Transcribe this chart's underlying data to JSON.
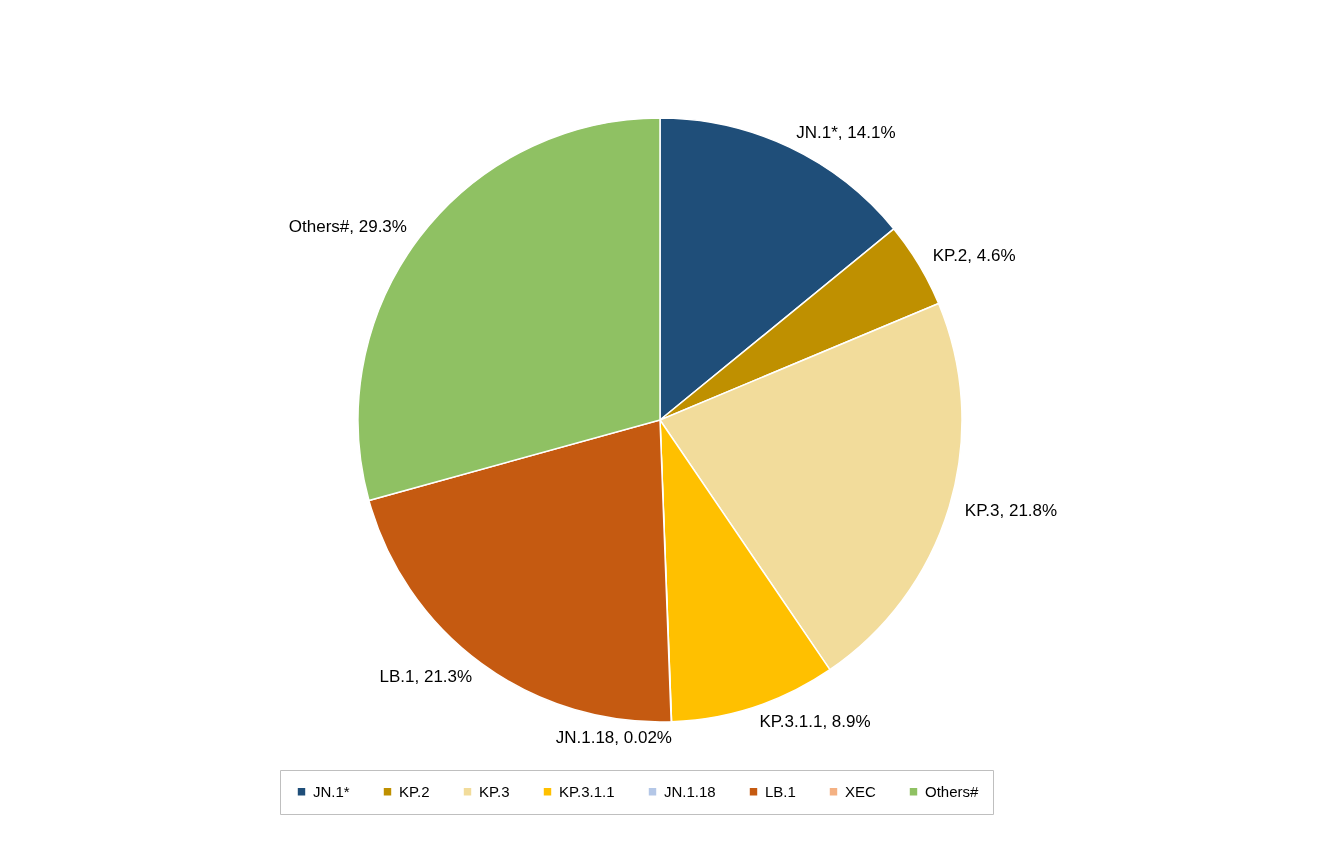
{
  "chart_data": {
    "type": "pie",
    "categories": [
      "JN.1*",
      "KP.2",
      "KP.3",
      "KP.3.1.1",
      "JN.1.18",
      "LB.1",
      "XEC",
      "Others#"
    ],
    "values": [
      14.1,
      4.6,
      21.8,
      8.9,
      0.02,
      21.3,
      0,
      29.3
    ],
    "value_labels": [
      "JN.1*, 14.1%",
      "KP.2, 4.6%",
      "KP.3, 21.8%",
      "KP.3.1.1, 8.9%",
      "JN.1.18, 0.02%",
      "LB.1, 21.3%",
      null,
      "Others#, 29.3%"
    ],
    "colors": [
      "#1f4e79",
      "#bf9000",
      "#f2dc9b",
      "#ffc000",
      "#b4c7e7",
      "#c55a11",
      "#f4b183",
      "#8fc163"
    ],
    "legend": "bottom"
  }
}
